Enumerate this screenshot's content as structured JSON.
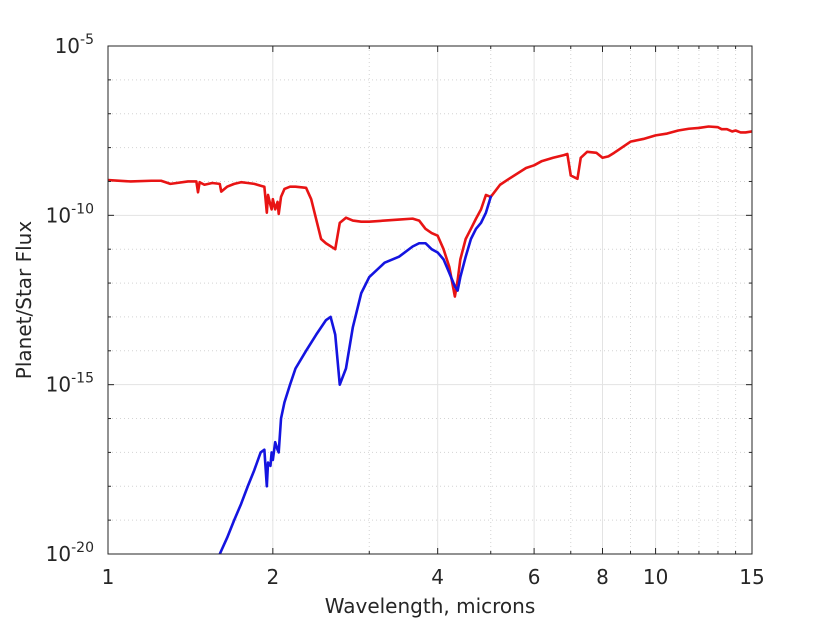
{
  "chart_data": {
    "type": "line",
    "title": "",
    "xlabel": "Wavelength, microns",
    "ylabel": "Planet/Star Flux",
    "x_scale": "log",
    "y_scale": "log",
    "xlim": [
      1,
      15
    ],
    "ylim": [
      1e-20,
      1e-05
    ],
    "x_ticks": [
      {
        "value": 1,
        "label": "1"
      },
      {
        "value": 2,
        "label": "2"
      },
      {
        "value": 4,
        "label": "4"
      },
      {
        "value": 6,
        "label": "6"
      },
      {
        "value": 8,
        "label": "8"
      },
      {
        "value": 10,
        "label": "10"
      },
      {
        "value": 15,
        "label": "15"
      }
    ],
    "y_ticks": [
      {
        "value": 1e-20,
        "base": "10",
        "exp": "-20"
      },
      {
        "value": 1e-15,
        "base": "10",
        "exp": "-15"
      },
      {
        "value": 1e-10,
        "base": "10",
        "exp": "-10"
      },
      {
        "value": 1e-05,
        "base": "10",
        "exp": "-5"
      }
    ],
    "grid": true,
    "series": [
      {
        "color": "#e81414",
        "x": [
          1.0,
          1.1,
          1.2,
          1.25,
          1.3,
          1.4,
          1.45,
          1.46,
          1.47,
          1.5,
          1.55,
          1.6,
          1.61,
          1.65,
          1.7,
          1.75,
          1.8,
          1.85,
          1.9,
          1.93,
          1.95,
          1.96,
          1.98,
          1.99,
          2.0,
          2.02,
          2.04,
          2.05,
          2.07,
          2.1,
          2.15,
          2.2,
          2.3,
          2.35,
          2.45,
          2.5,
          2.6,
          2.65,
          2.72,
          2.8,
          2.9,
          3.0,
          3.2,
          3.4,
          3.6,
          3.7,
          3.8,
          3.9,
          4.0,
          4.1,
          4.2,
          4.3,
          4.35,
          4.4,
          4.5,
          4.6,
          4.7,
          4.8,
          4.9,
          5.0,
          5.2,
          5.4,
          5.8,
          6.0,
          6.2,
          6.5,
          6.8,
          6.9,
          7.0,
          7.2,
          7.3,
          7.5,
          7.8,
          8.0,
          8.2,
          8.4,
          8.5,
          9.0,
          9.5,
          10.0,
          10.5,
          11.0,
          11.5,
          12.0,
          12.5,
          13.0,
          13.2,
          13.5,
          13.8,
          14.0,
          14.3,
          14.6,
          15.0
        ],
        "y": [
          1.1e-09,
          1e-09,
          1.05e-09,
          1.05e-09,
          8.5e-10,
          1e-09,
          1e-09,
          4.8e-10,
          9.5e-10,
          8e-10,
          9e-10,
          8.5e-10,
          5e-10,
          7e-10,
          8.5e-10,
          9.5e-10,
          9e-10,
          8.5e-10,
          7.5e-10,
          7e-10,
          1.2e-10,
          4e-10,
          2e-10,
          1.5e-10,
          3e-10,
          1.5e-10,
          2.5e-10,
          1.1e-10,
          3.5e-10,
          6e-10,
          7e-10,
          7e-10,
          6.5e-10,
          3e-10,
          2e-11,
          1.5e-11,
          1e-11,
          6e-11,
          8.5e-11,
          7e-11,
          6.5e-11,
          6.5e-11,
          7e-11,
          7.5e-11,
          8e-11,
          7e-11,
          4e-11,
          3e-11,
          2.5e-11,
          1e-11,
          3e-12,
          4e-13,
          1.2e-12,
          5e-12,
          2e-11,
          4e-11,
          8e-11,
          1.5e-10,
          4e-10,
          3.5e-10,
          8e-10,
          1.2e-09,
          2.5e-09,
          3e-09,
          4e-09,
          5e-09,
          6e-09,
          6.5e-09,
          1.5e-09,
          1.2e-09,
          5e-09,
          7.5e-09,
          7e-09,
          5e-09,
          5.5e-09,
          7e-09,
          8e-09,
          1.5e-08,
          1.8e-08,
          2.3e-08,
          2.6e-08,
          3.2e-08,
          3.6e-08,
          3.8e-08,
          4.2e-08,
          4e-08,
          3.5e-08,
          3.5e-08,
          3e-08,
          3.2e-08,
          2.8e-08,
          2.8e-08,
          3e-08
        ]
      },
      {
        "color": "#1414e0",
        "x": [
          1.6,
          1.65,
          1.7,
          1.75,
          1.8,
          1.85,
          1.9,
          1.93,
          1.95,
          1.96,
          1.98,
          1.99,
          2.0,
          2.02,
          2.04,
          2.05,
          2.07,
          2.1,
          2.15,
          2.2,
          2.3,
          2.4,
          2.5,
          2.55,
          2.6,
          2.65,
          2.72,
          2.8,
          2.9,
          3.0,
          3.2,
          3.4,
          3.6,
          3.7,
          3.8,
          3.9,
          4.0,
          4.1,
          4.2,
          4.3,
          4.35,
          4.4,
          4.5,
          4.6,
          4.7,
          4.8,
          4.9,
          5.0
        ],
        "y": [
          1e-20,
          3e-20,
          1e-19,
          3e-19,
          1e-18,
          3e-18,
          1e-17,
          1.2e-17,
          1e-18,
          5e-18,
          4e-18,
          1e-17,
          6e-18,
          2e-17,
          1.2e-17,
          1e-17,
          1e-16,
          3e-16,
          1e-15,
          3e-15,
          1e-14,
          3e-14,
          8e-14,
          1e-13,
          3e-14,
          1e-15,
          3e-15,
          5e-14,
          5e-13,
          1.5e-12,
          4e-12,
          6e-12,
          1.2e-11,
          1.5e-11,
          1.5e-11,
          1e-11,
          8e-12,
          5e-12,
          2e-12,
          8e-13,
          6e-13,
          1.5e-12,
          6e-12,
          2e-11,
          4e-11,
          6e-11,
          1.2e-10,
          3.5e-10
        ]
      }
    ]
  }
}
